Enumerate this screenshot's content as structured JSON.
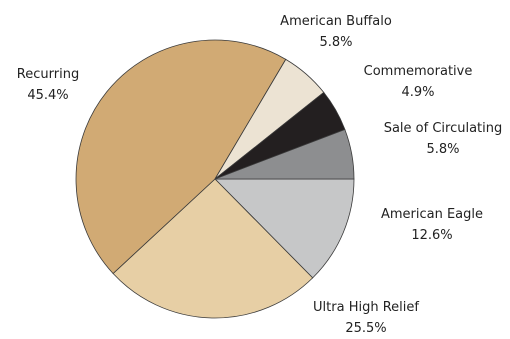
{
  "chart_data": {
    "type": "pie",
    "start_angle_deg": 0,
    "direction": "clockwise",
    "slices": [
      {
        "label": "American Eagle",
        "value": 12.6,
        "value_label": "12.6%",
        "color": "#c6c7c8"
      },
      {
        "label": "Ultra High Relief",
        "value": 25.5,
        "value_label": "25.5%",
        "color": "#e7cfa5"
      },
      {
        "label": "Recurring",
        "value": 45.4,
        "value_label": "45.4%",
        "color": "#d1aa74"
      },
      {
        "label": "American Buffalo",
        "value": 5.8,
        "value_label": "5.8%",
        "color": "#ece3d3"
      },
      {
        "label": "Commemorative",
        "value": 4.9,
        "value_label": "4.9%",
        "color": "#231f20"
      },
      {
        "label": "Sale of Circulating",
        "value": 5.8,
        "value_label": "5.8%",
        "color": "#8d8e90"
      }
    ]
  }
}
